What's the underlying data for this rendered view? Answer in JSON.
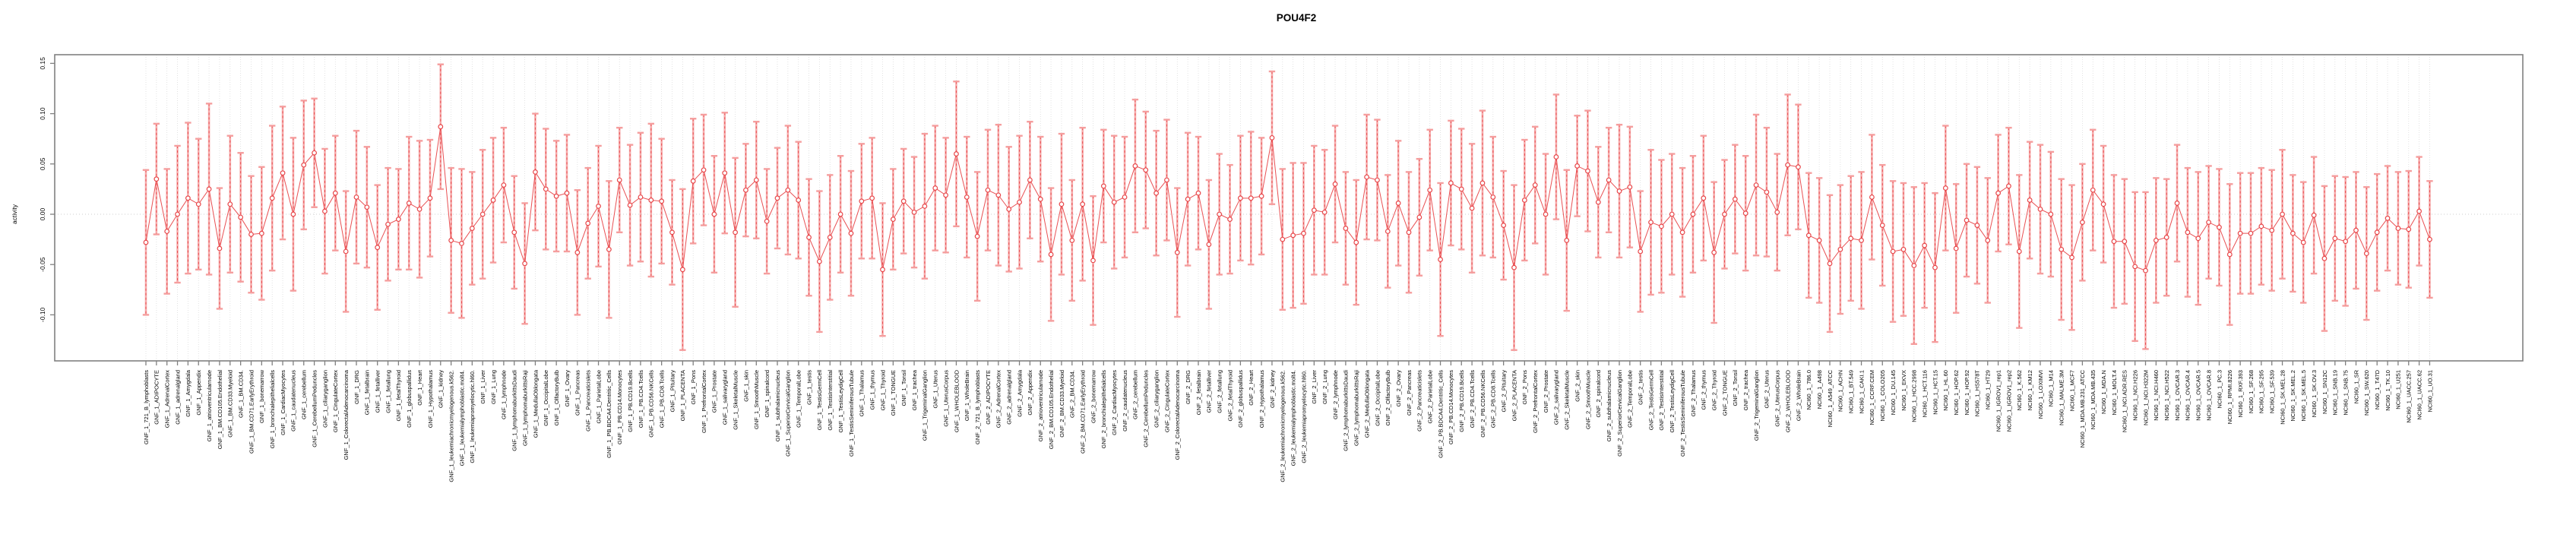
{
  "title": "POU4F2",
  "ylabel": "activity",
  "axis": {
    "ytick_labels": [
      "0.15",
      "0.10",
      "0.05",
      "0.00",
      "-0.05",
      "-0.10"
    ],
    "ytick_values": [
      0.15,
      0.1,
      0.05,
      0.0,
      -0.05,
      -0.1
    ]
  },
  "colors": {
    "point": "#e8474a",
    "line": "#e8474a",
    "error_bar_light": "#f59e9e",
    "grid": "#dcdcdc",
    "zero_line": "#c0c0c0",
    "axis_box": "#808080"
  },
  "chart_data": {
    "type": "line",
    "subtype": "point-with-error-bars",
    "title": "POU4F2",
    "xlabel": "",
    "ylabel": "activity",
    "ylim": [
      -0.148,
      0.158
    ],
    "grid": "dotted vertical gridline per category; dotted horizontal line at 0",
    "legend_position": "none",
    "categories": [
      "GNF_1_721_B_lymphoblasts",
      "GNF_1_ADIPOCYTE",
      "GNF_1_AdrenalCortex",
      "GNF_1_adrenalgland",
      "GNF_1_Amygdala",
      "GNF_1_Appendix",
      "GNF_1_atrioventricularnode",
      "GNF_1_BM.CD105.Endothelial",
      "GNF_1_BM.CD33.Myeloid",
      "GNF_1_BM.CD34.",
      "GNF_1_BM.CD71.EarlyErythroid",
      "GNF_1_bonemarrow",
      "GNF_1_bronchialepithelialcells",
      "GNF_1_CardiacMyocytes",
      "GNF_1_caudatenucleus",
      "GNF_1_cerebellum",
      "GNF_1_CerebellumPeduncles",
      "GNF_1_ciliaryganglion",
      "GNF_1_CingulateCortex",
      "GNF_1_ColorectalAdenocarcinoma",
      "GNF_1_DRG",
      "GNF_1_fetalbrain",
      "GNF_1_fetalliver",
      "GNF_1_fetallung",
      "GNF_1_fetalThyroid",
      "GNF_1_globuspallidus",
      "GNF_1_Heart",
      "GNF_1_Hypothalamus",
      "GNF_1_kidney",
      "GNF_1_leukemiachronicmyelogenous.k562.",
      "GNF_1_leukemialymphoblastic.molt4.",
      "GNF_1_leukemiapromyelocytic.hl60.",
      "GNF_1_Liver",
      "GNF_1_Lung",
      "GNF_1_lymphnode",
      "GNF_1_lymphomaburkittsDaudi",
      "GNF_1_lymphomaburkittsRaji",
      "GNF_1_MedullaOblongata",
      "GNF_1_OccipitalLobe",
      "GNF_1_OlfactoryBulb",
      "GNF_1_Ovary",
      "GNF_1_Pancreas",
      "GNF_1_Pancreaticislets",
      "GNF_1_ParietalLobe",
      "GNF_1_PB.BDCA4.Dentritic_Cells",
      "GNF_1_PB.CD14.Monocytes",
      "GNF_1_PB.CD19.Bcells",
      "GNF_1_PB.CD4.Tcells",
      "GNF_1_PB.CD56.NKCells",
      "GNF_1_PB.CD8.Tcells",
      "GNF_1_Pituitary",
      "GNF_1_PLACENTA",
      "GNF_1_Pons",
      "GNF_1_PrefrontalCortex",
      "GNF_1_Prostate",
      "GNF_1_salivarygland",
      "GNF_1_SkeletalMuscle",
      "GNF_1_skin",
      "GNF_1_SmoothMuscle",
      "GNF_1_spinalcord",
      "GNF_1_subthalamicnucleus",
      "GNF_1_SuperiorCervicalGanglion",
      "GNF_1_TemporalLobe",
      "GNF_1_testis",
      "GNF_1_TestisGermCell",
      "GNF_1_TestisInterstitial",
      "GNF_1_TestisLeydigCell",
      "GNF_1_TestisSeminiferousTubule",
      "GNF_1_Thalamus",
      "GNF_1_thymus",
      "GNF_1_Thyroid",
      "GNF_1_TONGUE",
      "GNF_1_Tonsil",
      "GNF_1_trachea",
      "GNF_1_TrigeminalGanglion",
      "GNF_1_Uterus",
      "GNF_1_UterusCorpus",
      "GNF_1_WHOLEBLOOD",
      "GNF_1_WholeBrain",
      "GNF_2_721_B_lymphoblasts",
      "GNF_2_ADIPOCYTE",
      "GNF_2_AdrenalCortex",
      "GNF_2_adrenalgland",
      "GNF_2_Amygdala",
      "GNF_2_Appendix",
      "GNF_2_atrioventricularnode",
      "GNF_2_BM.CD105.Endothelial",
      "GNF_2_BM.CD33.Myeloid",
      "GNF_2_BM.CD34.",
      "GNF_2_BM.CD71.EarlyErythroid",
      "GNF_2_bonemarrow",
      "GNF_2_bronchialepithelialcells",
      "GNF_2_CardiacMyocytes",
      "GNF_2_caudatenucleus",
      "GNF_2_cerebellum",
      "GNF_2_CerebellumPeduncles",
      "GNF_2_ciliaryganglion",
      "GNF_2_CingulateCortex",
      "GNF_2_ColorectalAdenocarcinoma",
      "GNF_2_DRG",
      "GNF_2_fetalbrain",
      "GNF_2_fetalliver",
      "GNF_2_fetallung",
      "GNF_2_fetalThyroid",
      "GNF_2_globuspallidus",
      "GNF_2_Heart",
      "GNF_2_Hypothalamus",
      "GNF_2_kidney",
      "GNF_2_leukemiachronicmyelogenous.k562.",
      "GNF_2_leukemialymphoblastic.molt4.",
      "GNF_2_leukemiapromyelocytic.hl60.",
      "GNF_2_Liver",
      "GNF_2_Lung",
      "GNF_2_lymphnode",
      "GNF_2_lymphomaburkittsDaudi",
      "GNF_2_lymphomaburkittsRaji",
      "GNF_2_MedullaOblongata",
      "GNF_2_OccipitalLobe",
      "GNF_2_OlfactoryBulb",
      "GNF_2_Ovary",
      "GNF_2_Pancreas",
      "GNF_2_Pancreaticislets",
      "GNF_2_ParietalLobe",
      "GNF_2_PB.BDCA4.Dentritic_Cells",
      "GNF_2_PB.CD14.Monocytes",
      "GNF_2_PB.CD19.Bcells",
      "GNF_2_PB.CD4.Tcells",
      "GNF_2_PB.CD56.NKCells",
      "GNF_2_PB.CD8.Tcells",
      "GNF_2_Pituitary",
      "GNF_2_PLACENTA",
      "GNF_2_Pons",
      "GNF_2_PrefrontalCortex",
      "GNF_2_Prostate",
      "GNF_2_salivarygland",
      "GNF_2_SkeletalMuscle",
      "GNF_2_skin",
      "GNF_2_SmoothMuscle",
      "GNF_2_spinalcord",
      "GNF_2_subthalamicnucleus",
      "GNF_2_SuperiorCervicalGanglion",
      "GNF_2_TemporalLobe",
      "GNF_2_testis",
      "GNF_2_TestisGermCell",
      "GNF_2_TestisInterstitial",
      "GNF_2_TestisLeydigCell",
      "GNF_2_TestisSeminiferousTubule",
      "GNF_2_Thalamus",
      "GNF_2_thymus",
      "GNF_2_Thyroid",
      "GNF_2_TONGUE",
      "GNF_2_Tonsil",
      "GNF_2_trachea",
      "GNF_2_TrigeminalGanglion",
      "GNF_2_Uterus",
      "GNF_2_UterusCorpus",
      "GNF_2_WHOLEBLOOD",
      "GNF_2_WholeBrain",
      "NCI60_1_786.0",
      "NCI60_1_A498",
      "NCI60_1_A549_ATCC",
      "NCI60_1_ACHN",
      "NCI60_1_BT.549",
      "NCI60_1_CAKI.1",
      "NCI60_1_CCRF.CEM",
      "NCI60_1_COLO205",
      "NCI60_1_DU.145",
      "NCI60_1_EKVX",
      "NCI60_1_HCC.2998",
      "NCI60_1_HCT.116",
      "NCI60_1_HCT.15",
      "NCI60_1_HL.60",
      "NCI60_1_HOP.62",
      "NCI60_1_HOP.92",
      "NCI60_1_HS578T",
      "NCI60_1_HT29",
      "NCI60_1_IGROV1_rep1",
      "NCI60_1_IGROV1_rep2",
      "NCI60_1_K.562",
      "NCI60_1_KM12",
      "NCI60_1_LOXIMVI",
      "NCI60_1_M14",
      "NCI60_1_MALME.3M",
      "NCI60_1_MCF7",
      "NCI60_1_MDA.MB.231_ATCC",
      "NCI60_1_MDA.MB.435",
      "NCI60_1_MDA.N",
      "NCI60_1_MOLT.4",
      "NCI60_1_NCI.ADR.RES",
      "NCI60_1_NCI.H226",
      "NCI60_1_NCI.H322M",
      "NCI60_1_NCI.H460",
      "NCI60_1_NCI.H522",
      "NCI60_1_OVCAR.3",
      "NCI60_1_OVCAR.4",
      "NCI60_1_OVCAR.5",
      "NCI60_1_OVCAR.8",
      "NCI60_1_PC.3",
      "NCI60_1_RPMI.8226",
      "NCI60_1_RXF.393",
      "NCI60_1_SF.268",
      "NCI60_1_SF.295",
      "NCI60_1_SF.539",
      "NCI60_1_SK.MEL.28",
      "NCI60_1_SK.MEL.2",
      "NCI60_1_SK.MEL.5",
      "NCI60_1_SK.OV.3",
      "NCI60_1_SN12C",
      "NCI60_1_SNB.19",
      "NCI60_1_SNB.75",
      "NCI60_1_SR",
      "NCI60_1_SW.620",
      "NCI60_1_T47D",
      "NCI60_1_TK.10",
      "NCI60_1_U251",
      "NCI60_1_UACC.257",
      "NCI60_1_UACC.62",
      "NCI60_1_UO.31"
    ],
    "values": [
      -0.028,
      0.035,
      -0.017,
      0.0,
      0.016,
      0.01,
      0.025,
      -0.034,
      0.01,
      -0.003,
      -0.02,
      -0.019,
      0.016,
      0.041,
      0.0,
      0.049,
      0.061,
      0.003,
      0.021,
      -0.037,
      0.017,
      0.007,
      -0.033,
      -0.01,
      -0.005,
      0.011,
      0.005,
      0.016,
      0.087,
      -0.026,
      -0.029,
      -0.014,
      0.0,
      0.014,
      0.029,
      -0.018,
      -0.049,
      0.042,
      0.025,
      0.018,
      0.021,
      -0.038,
      -0.009,
      0.008,
      -0.035,
      0.034,
      0.009,
      0.017,
      0.014,
      0.013,
      -0.018,
      -0.055,
      0.033,
      0.044,
      0.0,
      0.041,
      -0.018,
      0.024,
      0.034,
      -0.007,
      0.016,
      0.024,
      0.014,
      -0.023,
      -0.047,
      -0.023,
      0.0,
      -0.019,
      0.013,
      0.016,
      -0.055,
      -0.005,
      0.013,
      0.002,
      0.008,
      0.026,
      0.019,
      0.06,
      0.017,
      -0.022,
      0.024,
      0.019,
      0.005,
      0.012,
      0.034,
      0.015,
      -0.04,
      0.01,
      -0.026,
      0.01,
      -0.046,
      0.028,
      0.012,
      0.017,
      0.048,
      0.044,
      0.021,
      0.034,
      -0.038,
      0.015,
      0.021,
      -0.03,
      0.0,
      -0.005,
      0.016,
      0.016,
      0.018,
      0.076,
      -0.025,
      -0.021,
      -0.019,
      0.004,
      0.002,
      0.03,
      -0.014,
      -0.028,
      0.037,
      0.034,
      -0.017,
      0.011,
      -0.018,
      -0.003,
      0.024,
      -0.045,
      0.031,
      0.025,
      0.006,
      0.031,
      0.017,
      -0.011,
      -0.053,
      0.014,
      0.029,
      0.0,
      0.057,
      -0.026,
      0.048,
      0.043,
      0.012,
      0.034,
      0.023,
      0.027,
      -0.037,
      -0.008,
      -0.012,
      0.0,
      -0.018,
      0.0,
      0.016,
      -0.038,
      0.0,
      0.015,
      0.001,
      0.029,
      0.022,
      0.002,
      0.049,
      0.047,
      -0.021,
      -0.026,
      -0.049,
      -0.035,
      -0.024,
      -0.026,
      0.017,
      -0.011,
      -0.037,
      -0.035,
      -0.051,
      -0.031,
      -0.053,
      0.026,
      -0.034,
      -0.006,
      -0.011,
      -0.026,
      0.021,
      0.028,
      -0.037,
      0.014,
      0.005,
      0.0,
      -0.035,
      -0.043,
      -0.008,
      0.024,
      0.01,
      -0.027,
      -0.027,
      -0.052,
      -0.056,
      -0.026,
      -0.023,
      0.011,
      -0.018,
      -0.024,
      -0.008,
      -0.013,
      -0.04,
      -0.019,
      -0.019,
      -0.012,
      -0.016,
      0.0,
      -0.019,
      -0.028,
      -0.001,
      -0.044,
      -0.024,
      -0.027,
      -0.016,
      -0.039,
      -0.018,
      -0.004,
      -0.014,
      -0.015,
      0.003,
      -0.025
    ],
    "ci_half_width": [
      0.072,
      0.055,
      0.062,
      0.068,
      0.075,
      0.065,
      0.085,
      0.06,
      0.068,
      0.064,
      0.058,
      0.066,
      0.072,
      0.066,
      0.076,
      0.064,
      0.054,
      0.062,
      0.057,
      0.06,
      0.066,
      0.06,
      0.062,
      0.056,
      0.05,
      0.066,
      0.068,
      0.058,
      0.062,
      0.072,
      0.074,
      0.056,
      0.064,
      0.062,
      0.057,
      0.056,
      0.06,
      0.058,
      0.06,
      0.055,
      0.058,
      0.062,
      0.055,
      0.06,
      0.068,
      0.052,
      0.06,
      0.064,
      0.076,
      0.062,
      0.052,
      0.08,
      0.062,
      0.055,
      0.058,
      0.06,
      0.074,
      0.046,
      0.058,
      0.052,
      0.05,
      0.064,
      0.058,
      0.058,
      0.07,
      0.062,
      0.058,
      0.062,
      0.057,
      0.06,
      0.066,
      0.05,
      0.052,
      0.055,
      0.072,
      0.062,
      0.057,
      0.072,
      0.06,
      0.064,
      0.06,
      0.07,
      0.062,
      0.066,
      0.058,
      0.062,
      0.066,
      0.07,
      0.06,
      0.076,
      0.064,
      0.056,
      0.066,
      0.06,
      0.066,
      0.058,
      0.062,
      0.06,
      0.064,
      0.066,
      0.056,
      0.064,
      0.06,
      0.054,
      0.062,
      0.066,
      0.058,
      0.066,
      0.07,
      0.072,
      0.07,
      0.064,
      0.062,
      0.058,
      0.056,
      0.062,
      0.062,
      0.06,
      0.056,
      0.062,
      0.06,
      0.058,
      0.06,
      0.076,
      0.062,
      0.06,
      0.064,
      0.072,
      0.06,
      0.054,
      0.082,
      0.06,
      0.058,
      0.06,
      0.062,
      0.07,
      0.05,
      0.06,
      0.055,
      0.052,
      0.066,
      0.06,
      0.06,
      0.072,
      0.066,
      0.06,
      0.064,
      0.058,
      0.062,
      0.07,
      0.054,
      0.054,
      0.057,
      0.07,
      0.064,
      0.058,
      0.07,
      0.062,
      0.062,
      0.062,
      0.068,
      0.064,
      0.062,
      0.068,
      0.062,
      0.06,
      0.07,
      0.066,
      0.078,
      0.062,
      0.074,
      0.062,
      0.064,
      0.056,
      0.058,
      0.062,
      0.058,
      0.058,
      0.076,
      0.058,
      0.064,
      0.062,
      0.07,
      0.072,
      0.058,
      0.06,
      0.058,
      0.066,
      0.062,
      0.074,
      0.078,
      0.062,
      0.058,
      0.058,
      0.064,
      0.066,
      0.056,
      0.058,
      0.07,
      0.06,
      0.06,
      0.058,
      0.06,
      0.064,
      0.058,
      0.06,
      0.058,
      0.072,
      0.062,
      0.064,
      0.058,
      0.066,
      0.058,
      0.052,
      0.056,
      0.058,
      0.054,
      0.058
    ]
  }
}
